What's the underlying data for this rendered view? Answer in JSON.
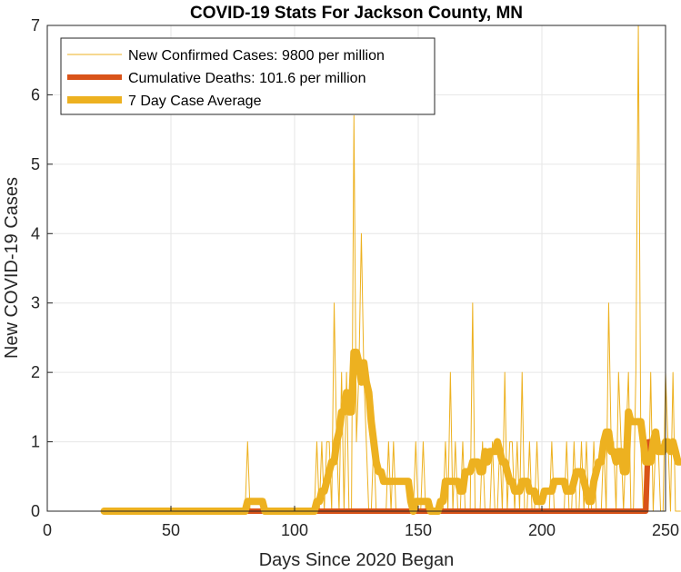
{
  "chart_data": {
    "type": "line",
    "title": "COVID-19 Stats For Jackson County, MN",
    "xlabel": "Days Since 2020 Began",
    "ylabel": "New COVID-19 Cases",
    "xlim": [
      0,
      250
    ],
    "ylim": [
      0,
      7
    ],
    "xticks": [
      0,
      50,
      100,
      150,
      200,
      250
    ],
    "yticks": [
      0,
      1,
      2,
      3,
      4,
      5,
      6,
      7
    ],
    "grid": true,
    "legend_position": "top-left",
    "x_start": 23,
    "series": [
      {
        "name": "New Confirmed Cases: 9800 per million",
        "color": "#EDB120",
        "style": "thin",
        "values": [
          0,
          0,
          0,
          0,
          0,
          0,
          0,
          0,
          0,
          0,
          0,
          0,
          0,
          0,
          0,
          0,
          0,
          0,
          0,
          0,
          0,
          0,
          0,
          0,
          0,
          0,
          0,
          0,
          0,
          0,
          0,
          0,
          0,
          0,
          0,
          0,
          0,
          0,
          0,
          0,
          0,
          0,
          0,
          0,
          0,
          0,
          0,
          0,
          0,
          0,
          0,
          0,
          0,
          0,
          0,
          0,
          0,
          0,
          1,
          0,
          0,
          0,
          0,
          0,
          0,
          0,
          0,
          0,
          0,
          0,
          0,
          0,
          0,
          0,
          0,
          0,
          0,
          0,
          0,
          0,
          0,
          0,
          0,
          0,
          0,
          0,
          1,
          0,
          1,
          0,
          1,
          1,
          0,
          3,
          1,
          0,
          2,
          0,
          2,
          0,
          0,
          5.7,
          1,
          2,
          4,
          2,
          1,
          0,
          0,
          1,
          0,
          0,
          0,
          0,
          0,
          1,
          0,
          1,
          0,
          0,
          0,
          0,
          0,
          0,
          0,
          0,
          1,
          0,
          0,
          1,
          0,
          0,
          0,
          0,
          0,
          0,
          0,
          0,
          1,
          0,
          2,
          0,
          1,
          0,
          0,
          1,
          0,
          0,
          0,
          3,
          0,
          0,
          0,
          1,
          0,
          0,
          0,
          1,
          0,
          0,
          1,
          0,
          2,
          0,
          1,
          1,
          0,
          1,
          0,
          2,
          0,
          0,
          1,
          0,
          0,
          1,
          0,
          0,
          0,
          0,
          0,
          1,
          0,
          0,
          0,
          0,
          0,
          1,
          0,
          0,
          1,
          0,
          0,
          1,
          0,
          1,
          0,
          0,
          1,
          0,
          0,
          0,
          1,
          0,
          3,
          1,
          1,
          0,
          2,
          1,
          0,
          1,
          2,
          0,
          0,
          2,
          7,
          1,
          0,
          1,
          0,
          2,
          0,
          1,
          1,
          0,
          0,
          2,
          1,
          0,
          2,
          0,
          0,
          0
        ]
      },
      {
        "name": "Cumulative Deaths: 101.6 per million",
        "color": "#D95319",
        "style": "thick",
        "values": [
          0,
          0,
          0,
          0,
          0,
          0,
          0,
          0,
          0,
          0,
          0,
          0,
          0,
          0,
          0,
          0,
          0,
          0,
          0,
          0,
          0,
          0,
          0,
          0,
          0,
          0,
          0,
          0,
          0,
          0,
          0,
          0,
          0,
          0,
          0,
          0,
          0,
          0,
          0,
          0,
          0,
          0,
          0,
          0,
          0,
          0,
          0,
          0,
          0,
          0,
          0,
          0,
          0,
          0,
          0,
          0,
          0,
          0,
          0,
          0,
          0,
          0,
          0,
          0,
          0,
          0,
          0,
          0,
          0,
          0,
          0,
          0,
          0,
          0,
          0,
          0,
          0,
          0,
          0,
          0,
          0,
          0,
          0,
          0,
          0,
          0,
          0,
          0,
          0,
          0,
          0,
          0,
          0,
          0,
          0,
          0,
          0,
          0,
          0,
          0,
          0,
          0,
          0,
          0,
          0,
          0,
          0,
          0,
          0,
          0,
          0,
          0,
          0,
          0,
          0,
          0,
          0,
          0,
          0,
          0,
          0,
          0,
          0,
          0,
          0,
          0,
          0,
          0,
          0,
          0,
          0,
          0,
          0,
          0,
          0,
          0,
          0,
          0,
          0,
          0,
          0,
          0,
          0,
          0,
          0,
          0,
          0,
          0,
          0,
          0,
          0,
          0,
          0,
          0,
          0,
          0,
          0,
          0,
          0,
          0,
          0,
          0,
          0,
          0,
          0,
          0,
          0,
          0,
          0,
          0,
          0,
          0,
          0,
          0,
          0,
          0,
          0,
          0,
          0,
          0,
          0,
          0,
          0,
          0,
          0,
          0,
          0,
          0,
          0,
          0,
          0,
          0,
          0,
          0,
          0,
          0,
          0,
          0,
          0,
          0,
          0,
          0,
          0,
          0,
          0,
          0,
          0,
          0,
          0,
          0,
          0,
          0,
          0,
          0,
          0,
          0,
          0,
          0,
          0,
          0,
          1,
          1,
          1
        ]
      },
      {
        "name": "7 Day Case Average",
        "color": "#EDB120",
        "style": "thicker",
        "values": [
          0,
          0,
          0,
          0,
          0,
          0,
          0,
          0,
          0,
          0,
          0,
          0,
          0,
          0,
          0,
          0,
          0,
          0,
          0,
          0,
          0,
          0,
          0,
          0,
          0,
          0,
          0,
          0,
          0,
          0,
          0,
          0,
          0,
          0,
          0,
          0,
          0,
          0,
          0,
          0,
          0,
          0,
          0,
          0,
          0,
          0,
          0,
          0,
          0,
          0,
          0,
          0,
          0,
          0,
          0,
          0,
          0,
          0,
          0.14,
          0.14,
          0.14,
          0.14,
          0.14,
          0.14,
          0.14,
          0,
          0,
          0,
          0,
          0,
          0,
          0,
          0,
          0,
          0,
          0,
          0,
          0,
          0,
          0,
          0,
          0,
          0,
          0,
          0,
          0,
          0.14,
          0.14,
          0.29,
          0.29,
          0.43,
          0.57,
          0.71,
          0.71,
          1,
          1.14,
          1.43,
          1.43,
          1.71,
          1.43,
          1.43,
          2.29,
          2.29,
          2.14,
          1.86,
          2.14,
          1.86,
          1.71,
          1.29,
          1,
          0.71,
          0.57,
          0.57,
          0.43,
          0.43,
          0.43,
          0.43,
          0.43,
          0.43,
          0.43,
          0.43,
          0.43,
          0.43,
          0.43,
          0.14,
          0,
          0.14,
          0.14,
          0.14,
          0.14,
          0.14,
          0.14,
          0,
          0,
          0,
          0,
          0.14,
          0.14,
          0.43,
          0.43,
          0.43,
          0.43,
          0.43,
          0.43,
          0.29,
          0.29,
          0.57,
          0.57,
          0.57,
          0.71,
          0.71,
          0.71,
          0.57,
          0.57,
          0.86,
          0.71,
          0.86,
          0.86,
          0.86,
          1,
          0.86,
          0.71,
          0.71,
          0.57,
          0.43,
          0.43,
          0.29,
          0.29,
          0.29,
          0.43,
          0.43,
          0.43,
          0.29,
          0.29,
          0.29,
          0.14,
          0.14,
          0.14,
          0.29,
          0.29,
          0.29,
          0.29,
          0.43,
          0.43,
          0.43,
          0.43,
          0.43,
          0.29,
          0.29,
          0.29,
          0.43,
          0.57,
          0.57,
          0.57,
          0.43,
          0.29,
          0.14,
          0.14,
          0.43,
          0.57,
          0.71,
          0.71,
          1,
          1.14,
          1.14,
          0.86,
          0.86,
          0.71,
          0.86,
          0.86,
          0.57,
          0.57,
          1.43,
          1.29,
          1.29,
          1.29,
          1.29,
          1.29,
          1,
          0.71,
          0.71,
          0.71,
          1,
          1.14,
          0.86,
          0.86,
          0.86,
          1,
          1,
          0.86,
          1,
          0.86,
          0.71,
          0.71
        ]
      }
    ]
  }
}
